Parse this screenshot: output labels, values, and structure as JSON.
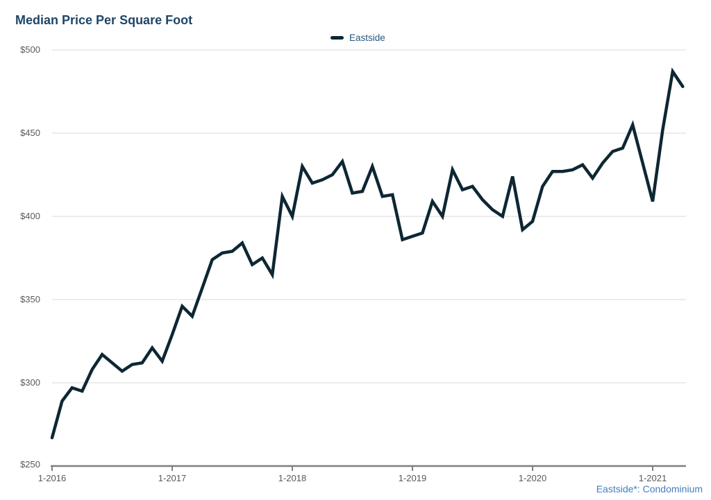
{
  "title": "Median Price Per Square Foot",
  "legend": {
    "label": "Eastside"
  },
  "footnote": "Eastside*: Condominium",
  "colors": {
    "title": "#1f4566",
    "legend_text": "#27577f",
    "line": "#0d2733",
    "grid": "#d9d9d9",
    "axis": "#7f7f7f",
    "tick_label": "#595959",
    "footnote": "#3f7fc1",
    "background": "#ffffff"
  },
  "chart_data": {
    "type": "line",
    "title": "Median Price Per Square Foot",
    "legend_position": "top-center",
    "grid": "horizontal",
    "ylim": [
      250,
      500
    ],
    "y_ticks": [
      500,
      450,
      400,
      350,
      300,
      250
    ],
    "y_tick_labels": [
      "$500",
      "$450",
      "$400",
      "$350",
      "$300",
      "$250"
    ],
    "x_tick_labels": [
      "1-2016",
      "1-2017",
      "1-2018",
      "1-2019",
      "1-2020",
      "1-2021"
    ],
    "x_unit": "month",
    "x_start": "1-2016",
    "x_end": "4-2021",
    "series": [
      {
        "name": "Eastside",
        "values": [
          267,
          289,
          297,
          295,
          308,
          317,
          312,
          307,
          311,
          312,
          321,
          313,
          329,
          346,
          340,
          357,
          374,
          378,
          379,
          384,
          371,
          375,
          365,
          412,
          400,
          430,
          420,
          422,
          425,
          433,
          414,
          415,
          430,
          412,
          413,
          386,
          388,
          390,
          409,
          400,
          428,
          416,
          418,
          410,
          404,
          400,
          424,
          392,
          397,
          418,
          427,
          427,
          428,
          431,
          423,
          432,
          439,
          441,
          455,
          432,
          409,
          452,
          487,
          478
        ]
      }
    ]
  }
}
